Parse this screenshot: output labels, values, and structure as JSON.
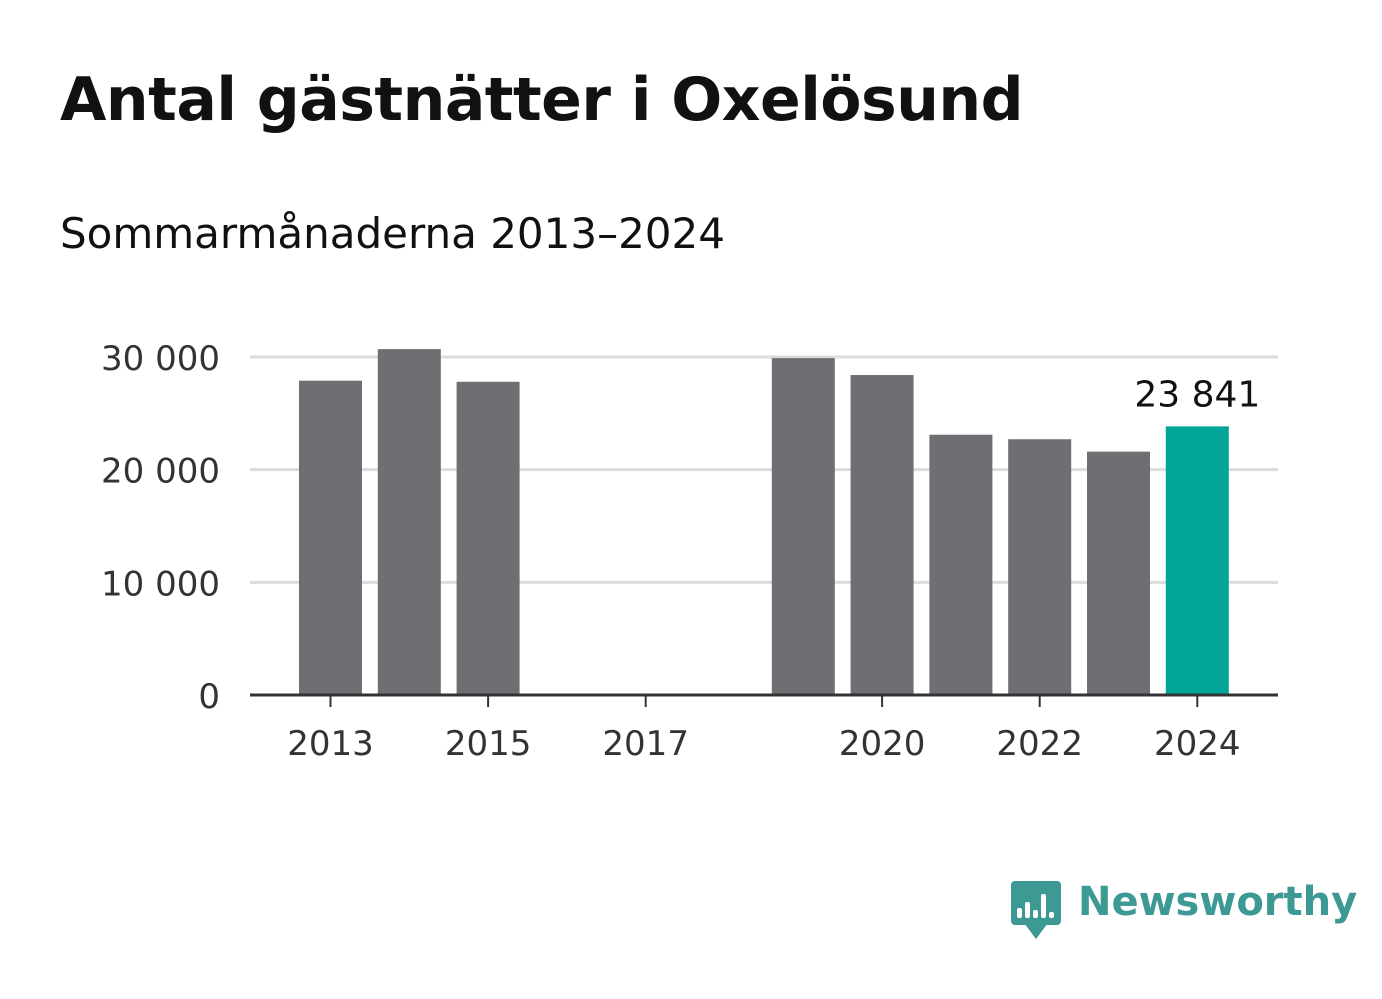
{
  "title": "Antal gästnätter i Oxelösund",
  "subtitle": "Sommarmånaderna 2013–2024",
  "brand": {
    "name": "Newsworthy",
    "icon": "bar-chart-speech-bubble-icon",
    "color": "#3d9994"
  },
  "colors": {
    "bar": "#6e6e73",
    "highlight": "#00a499",
    "grid": "#dcdcdc",
    "axis": "#333333",
    "tick_text": "#333333",
    "label_text": "#111111"
  },
  "chart_data": {
    "type": "bar",
    "title": "Antal gästnätter i Oxelösund",
    "subtitle": "Sommarmånaderna 2013–2024",
    "categories": [
      "2013",
      "2014",
      "2015",
      "2016",
      "2017",
      "2018",
      "2019",
      "2020",
      "2021",
      "2022",
      "2023",
      "2024"
    ],
    "values": [
      27900,
      30700,
      27800,
      null,
      null,
      null,
      29900,
      28400,
      23100,
      22700,
      21600,
      23841
    ],
    "highlight_index": 11,
    "data_labels": [
      {
        "index": 11,
        "text": "23 841"
      }
    ],
    "ylim": [
      0,
      30000
    ],
    "yticks": [
      0,
      10000,
      20000,
      30000
    ],
    "ytick_labels": [
      "0",
      "10 000",
      "20 000",
      "30 000"
    ],
    "xtick_labels": [
      "2013",
      "2015",
      "2017",
      "2020",
      "2022",
      "2024"
    ],
    "xlabel": "",
    "ylabel": "",
    "grid": true
  }
}
